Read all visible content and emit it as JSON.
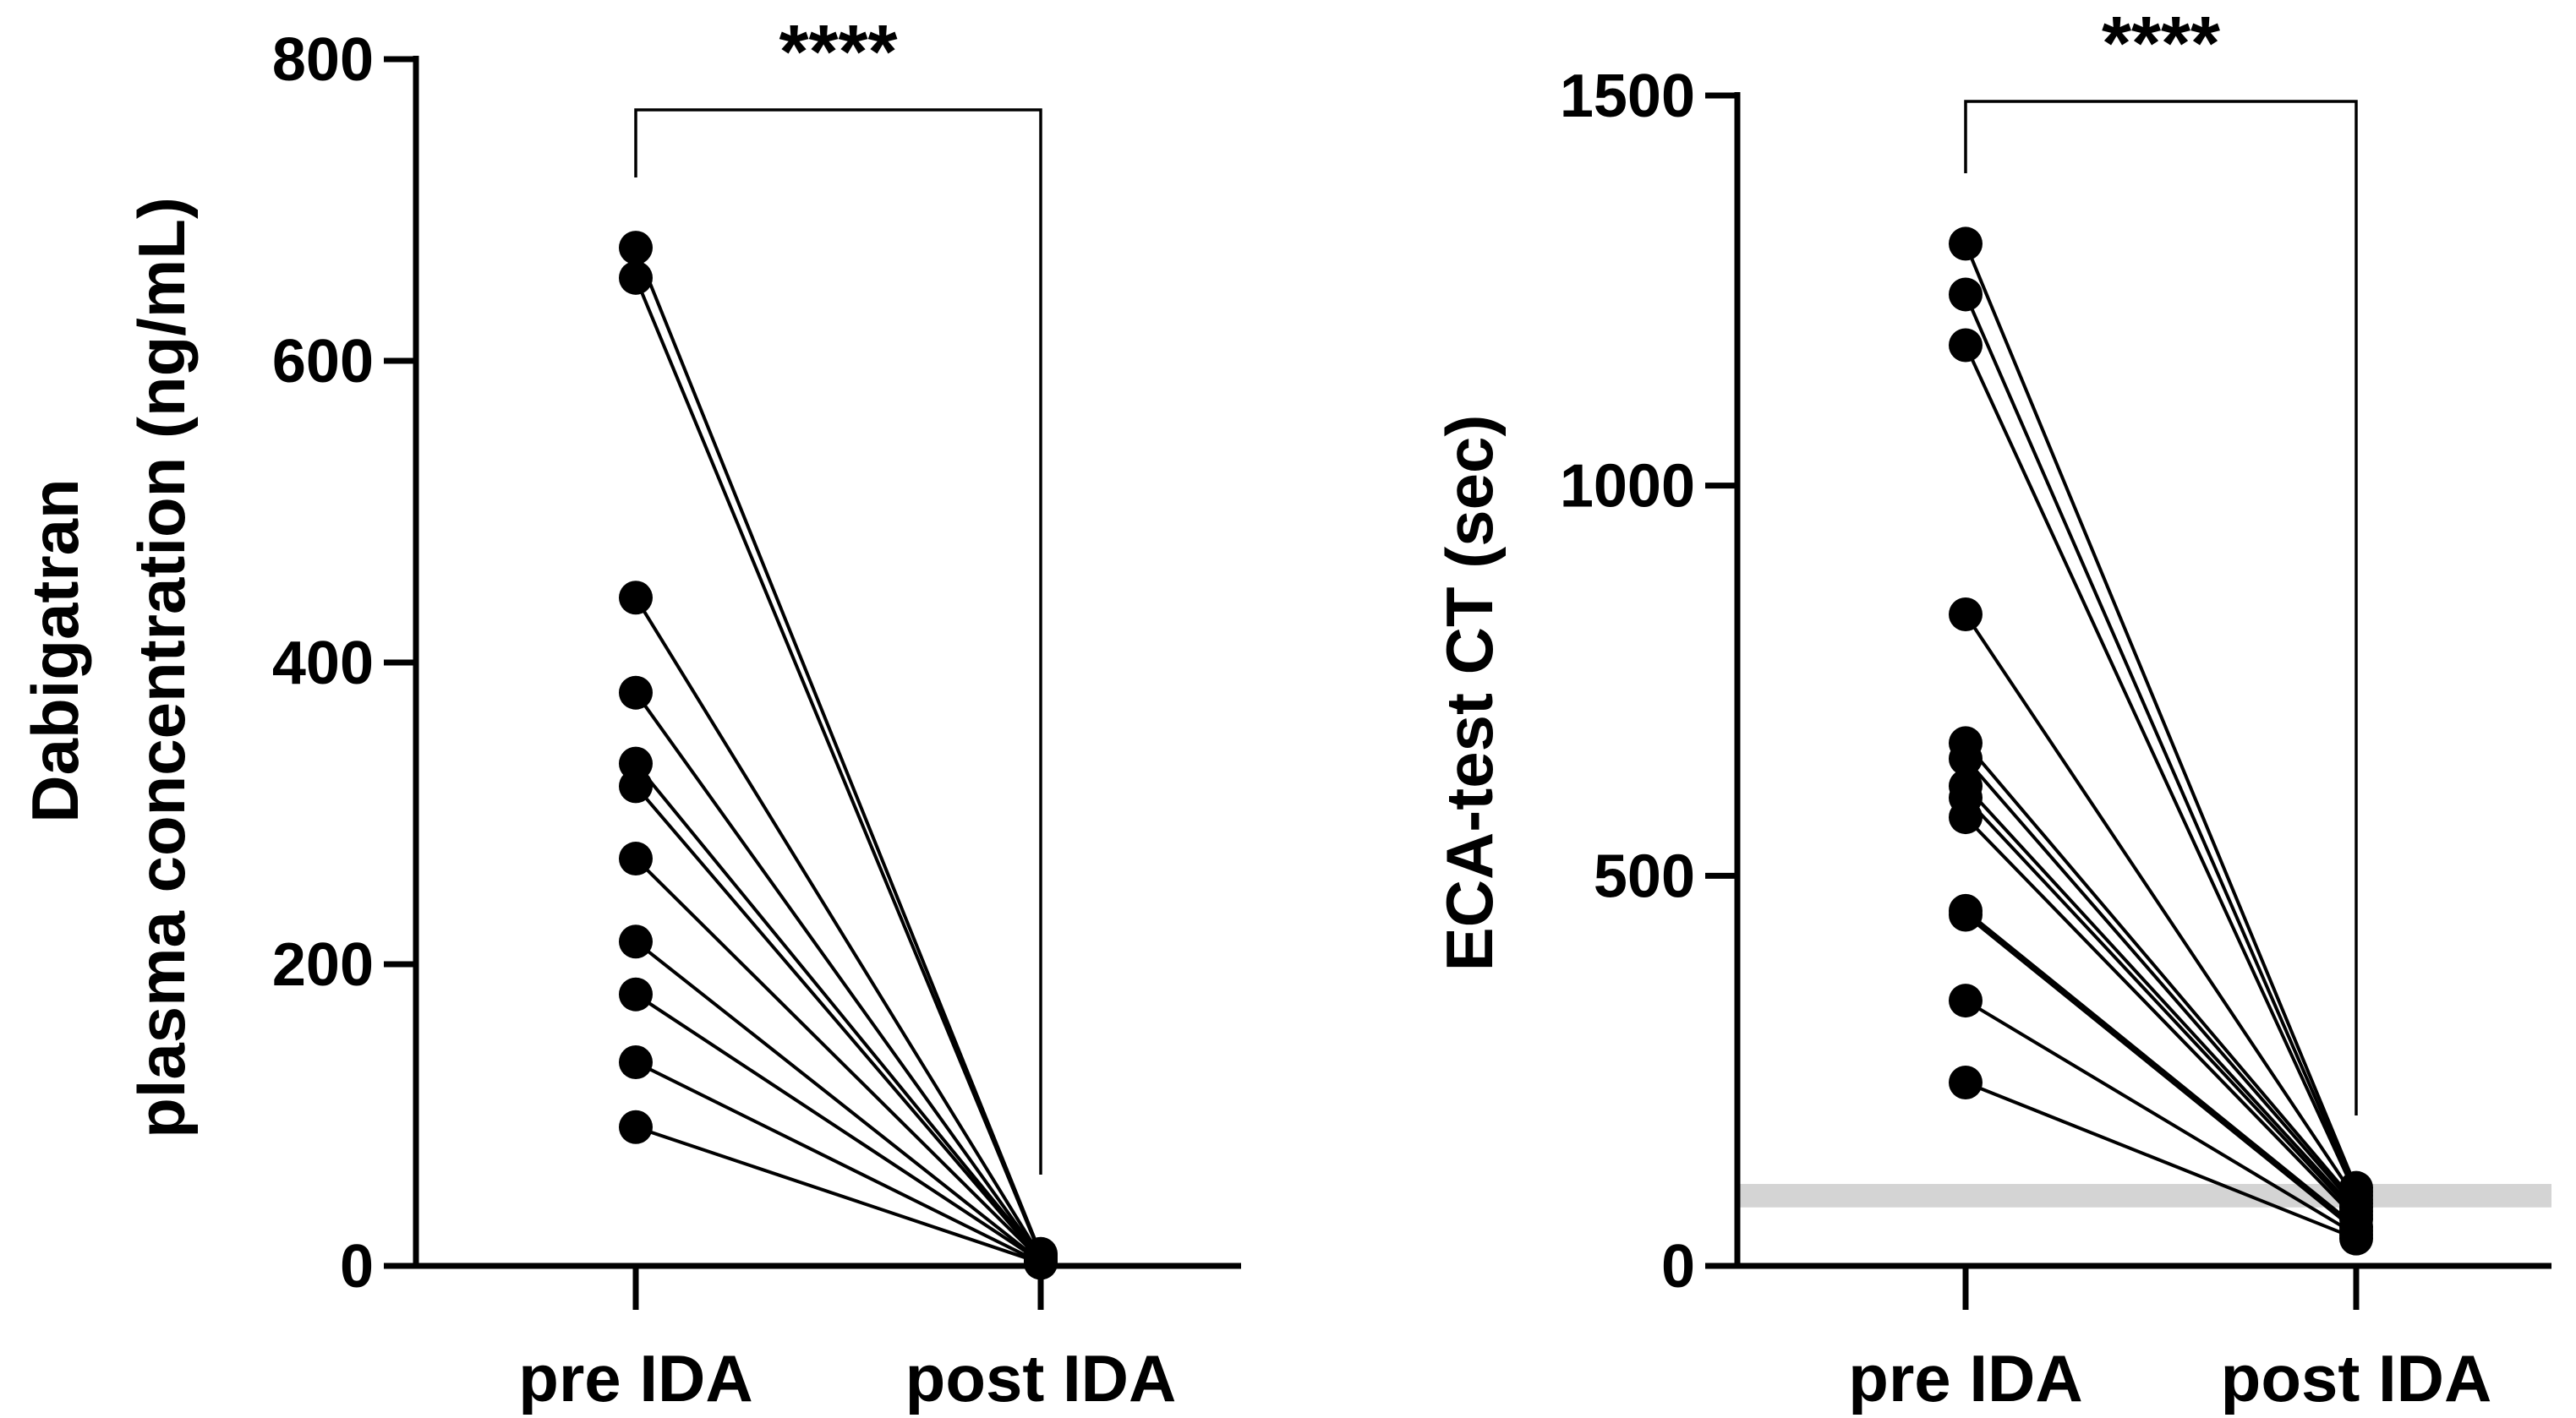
{
  "chart_data": [
    {
      "type": "line",
      "subtype": "paired-dot",
      "ylabel_line1": "Dabigatran",
      "ylabel_line2": "plasma concentration (ng/mL)",
      "ylim": [
        0,
        800
      ],
      "yticks": [
        0,
        200,
        400,
        600,
        800
      ],
      "categories": [
        "pre IDA",
        "post IDA"
      ],
      "significance": "****",
      "pairs": [
        {
          "pre": 675,
          "post": 8
        },
        {
          "pre": 655,
          "post": 7
        },
        {
          "pre": 443,
          "post": 6
        },
        {
          "pre": 380,
          "post": 5
        },
        {
          "pre": 333,
          "post": 5
        },
        {
          "pre": 318,
          "post": 4
        },
        {
          "pre": 270,
          "post": 4
        },
        {
          "pre": 215,
          "post": 3
        },
        {
          "pre": 180,
          "post": 3
        },
        {
          "pre": 135,
          "post": 2
        },
        {
          "pre": 92,
          "post": 2
        }
      ]
    },
    {
      "type": "line",
      "subtype": "paired-dot",
      "ylabel": "ECA-test CT (sec)",
      "ylim": [
        0,
        1500
      ],
      "yticks": [
        0,
        500,
        1000,
        1500
      ],
      "categories": [
        "pre IDA",
        "post IDA"
      ],
      "significance": "****",
      "reference_band": [
        75,
        105
      ],
      "pairs": [
        {
          "pre": 1310,
          "post": 100
        },
        {
          "pre": 1245,
          "post": 95
        },
        {
          "pre": 1180,
          "post": 90
        },
        {
          "pre": 835,
          "post": 85
        },
        {
          "pre": 670,
          "post": 80
        },
        {
          "pre": 650,
          "post": 75
        },
        {
          "pre": 615,
          "post": 70
        },
        {
          "pre": 600,
          "post": 65
        },
        {
          "pre": 575,
          "post": 60
        },
        {
          "pre": 455,
          "post": 50
        },
        {
          "pre": 450,
          "post": 45
        },
        {
          "pre": 340,
          "post": 40
        },
        {
          "pre": 235,
          "post": 35
        }
      ]
    }
  ]
}
